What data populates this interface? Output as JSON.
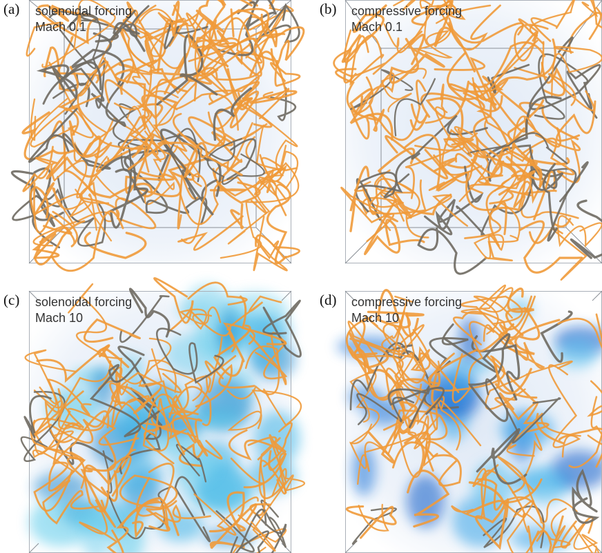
{
  "panels": [
    {
      "label": "(a)",
      "title": "solenoidal forcing",
      "subtitle": "Mach 0.1"
    },
    {
      "label": "(b)",
      "title": "compressive forcing",
      "subtitle": "Mach 0.1"
    },
    {
      "label": "(c)",
      "title": "solenoidal forcing",
      "subtitle": "Mach 10"
    },
    {
      "label": "(d)",
      "title": "compressive forcing",
      "subtitle": "Mach 10"
    }
  ]
}
